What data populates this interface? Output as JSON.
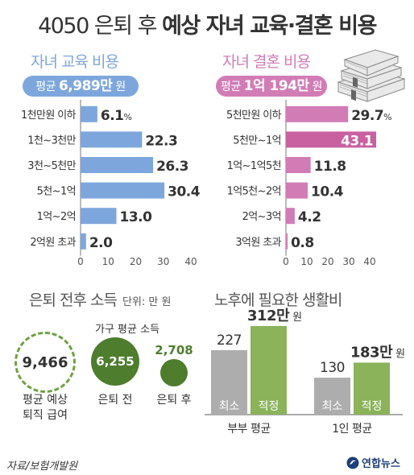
{
  "title_part1": "4050 은퇴 후",
  "title_part2": "예상 자녀 교육·결혼 비용",
  "education": {
    "title": "자녀 교육 비용",
    "avg_label": "평균",
    "avg_value": "6,989만",
    "avg_unit": "원",
    "color": "#7da7dc"
  },
  "marriage": {
    "title": "자녀 결혼 비용",
    "avg_label": "평균",
    "avg_value": "1억 194만",
    "avg_unit": "원",
    "color": "#d27cb6"
  },
  "income": {
    "title": "은퇴 전후 소득",
    "unit_note": "단위: 만 원",
    "severance_value": "9,466",
    "severance_caption_1": "평균 예상",
    "severance_caption_2": "퇴직 급여",
    "household_title": "가구 평균 소득",
    "before_value": "6,255",
    "before_caption": "은퇴 전",
    "after_value": "2,708",
    "after_caption": "은퇴 후"
  },
  "source": "자료/보험개발원",
  "logo_text": "연합뉴스",
  "chart_data": [
    {
      "type": "bar",
      "orientation": "horizontal",
      "title": "자녀 교육 비용",
      "categories": [
        "1천만원 이하",
        "1천~3천만",
        "3천~5천만",
        "5천~1억",
        "1억~2억",
        "2억원 초과"
      ],
      "values": [
        6.1,
        22.3,
        26.3,
        30.4,
        13.0,
        2.0
      ],
      "value_labels": [
        "6.1",
        "22.3",
        "26.3",
        "30.4",
        "13.0",
        "2.0"
      ],
      "percent_sign_on_first": "%",
      "xlim": [
        0,
        40
      ],
      "xticks": [
        "0",
        "10",
        "20",
        "30",
        "40"
      ],
      "color": "#7da7dc",
      "highlight_index": null
    },
    {
      "type": "bar",
      "orientation": "horizontal",
      "title": "자녀 결혼 비용",
      "categories": [
        "5천만원 이하",
        "5천만~1억",
        "1억~1억5천",
        "1억5천~2억",
        "2억~3억",
        "3억원 초과"
      ],
      "values": [
        29.7,
        43.1,
        11.8,
        10.4,
        4.2,
        0.8
      ],
      "value_labels": [
        "29.7",
        "43.1",
        "11.8",
        "10.4",
        "4.2",
        "0.8"
      ],
      "percent_sign_on_first": "%",
      "xlim": [
        0,
        40
      ],
      "xticks": [
        "0",
        "10",
        "20",
        "30",
        "40"
      ],
      "color": "#d27cb6",
      "highlight_color": "#c9609f",
      "highlight_index": 1
    },
    {
      "type": "bar",
      "title": "노후에 필요한 생활비",
      "categories": [
        "부부 평균",
        "1인 평균"
      ],
      "series": [
        {
          "name": "최소",
          "values": [
            227,
            130
          ],
          "value_labels": [
            "227",
            "130"
          ],
          "color": "#adadad"
        },
        {
          "name": "적정",
          "values": [
            312,
            183
          ],
          "value_labels": [
            "312만",
            "183만"
          ],
          "color": "#8ab35a"
        }
      ],
      "value_unit": "원",
      "ylim": [
        0,
        340
      ]
    }
  ]
}
